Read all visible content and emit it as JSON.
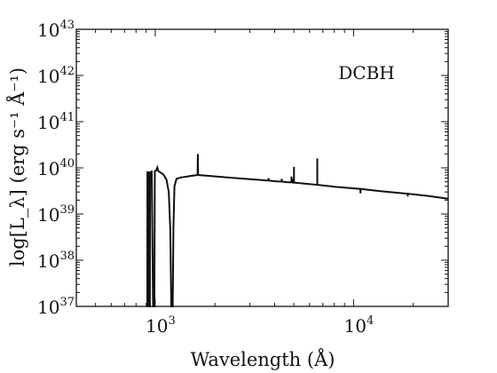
{
  "chart_data": {
    "type": "line",
    "title": "",
    "annotation": "DCBH",
    "xlabel": "Wavelength (Å)",
    "ylabel": "log[L_λ]  (erg s⁻¹ Å⁻¹)",
    "xscale": "log",
    "yscale": "log",
    "xlim": [
      400,
      30000
    ],
    "ylim": [
      1e+37,
      1e+43
    ],
    "grid": false,
    "legend": "none",
    "line_color": "#111111",
    "x_ticks": [
      {
        "value": 1000,
        "base": "10",
        "exp": "3"
      },
      {
        "value": 10000,
        "base": "10",
        "exp": "4"
      }
    ],
    "y_ticks": [
      {
        "value": 1e+37,
        "base": "10",
        "exp": "37"
      },
      {
        "value": 1e+38,
        "base": "10",
        "exp": "38"
      },
      {
        "value": 1e+39,
        "base": "10",
        "exp": "39"
      },
      {
        "value": 1e+40,
        "base": "10",
        "exp": "40"
      },
      {
        "value": 1e+41,
        "base": "10",
        "exp": "41"
      },
      {
        "value": 1e+42,
        "base": "10",
        "exp": "42"
      },
      {
        "value": 1e+43,
        "base": "10",
        "exp": "43"
      }
    ],
    "series": [
      {
        "points": [
          [
            912,
            1e+37
          ],
          [
            913,
            8e+39
          ],
          [
            918,
            8e+39
          ],
          [
            919,
            1e+37
          ],
          [
            925,
            1e+37
          ],
          [
            926,
            8e+39
          ],
          [
            930,
            8e+39
          ],
          [
            931,
            1e+37
          ],
          [
            940,
            1e+37
          ],
          [
            941,
            8e+39
          ],
          [
            960,
            8.3e+39
          ],
          [
            975,
            1e+37
          ],
          [
            990,
            1e+37
          ],
          [
            995,
            8.5e+39
          ],
          [
            1010,
            8.8e+39
          ],
          [
            1025,
            1.02e+40
          ],
          [
            1035,
            8.5e+39
          ],
          [
            1060,
            8e+39
          ],
          [
            1100,
            7.2e+39
          ],
          [
            1140,
            5.5e+39
          ],
          [
            1170,
            3e+39
          ],
          [
            1190,
            5e+38
          ],
          [
            1205,
            1e+37
          ],
          [
            1225,
            1e+37
          ],
          [
            1235,
            5e+38
          ],
          [
            1250,
            4e+39
          ],
          [
            1280,
            5.8e+39
          ],
          [
            1350,
            6.2e+39
          ],
          [
            1450,
            6.5e+39
          ],
          [
            1550,
            6.8e+39
          ],
          [
            1635,
            7e+39
          ],
          [
            1640,
            2e+40
          ],
          [
            1645,
            7e+39
          ],
          [
            1800,
            6.8e+39
          ],
          [
            2200,
            6.3e+39
          ],
          [
            2800,
            5.8e+39
          ],
          [
            3500,
            5.4e+39
          ],
          [
            3727,
            5.3e+39
          ],
          [
            3730,
            6e+39
          ],
          [
            3735,
            5.3e+39
          ],
          [
            4100,
            5.1e+39
          ],
          [
            4340,
            5.05e+39
          ],
          [
            4342,
            5.8e+39
          ],
          [
            4345,
            5.05e+39
          ],
          [
            4600,
            4.9e+39
          ],
          [
            4860,
            4.85e+39
          ],
          [
            4862,
            6.5e+39
          ],
          [
            4865,
            4.85e+39
          ],
          [
            4957,
            4.8e+39
          ],
          [
            4959,
            5.8e+39
          ],
          [
            4962,
            4.8e+39
          ],
          [
            5005,
            4.8e+39
          ],
          [
            5007,
            1.05e+40
          ],
          [
            5010,
            4.8e+39
          ],
          [
            5800,
            4.5e+39
          ],
          [
            6560,
            4.3e+39
          ],
          [
            6563,
            1.6e+40
          ],
          [
            6566,
            4.3e+39
          ],
          [
            8000,
            3.9e+39
          ],
          [
            10800,
            3.5e+39
          ],
          [
            10830,
            2.8e+39
          ],
          [
            10860,
            3.5e+39
          ],
          [
            14000,
            3.1e+39
          ],
          [
            18750,
            2.75e+39
          ],
          [
            18760,
            2.4e+39
          ],
          [
            18780,
            2.75e+39
          ],
          [
            24000,
            2.45e+39
          ],
          [
            30000,
            2.15e+39
          ]
        ]
      }
    ]
  }
}
